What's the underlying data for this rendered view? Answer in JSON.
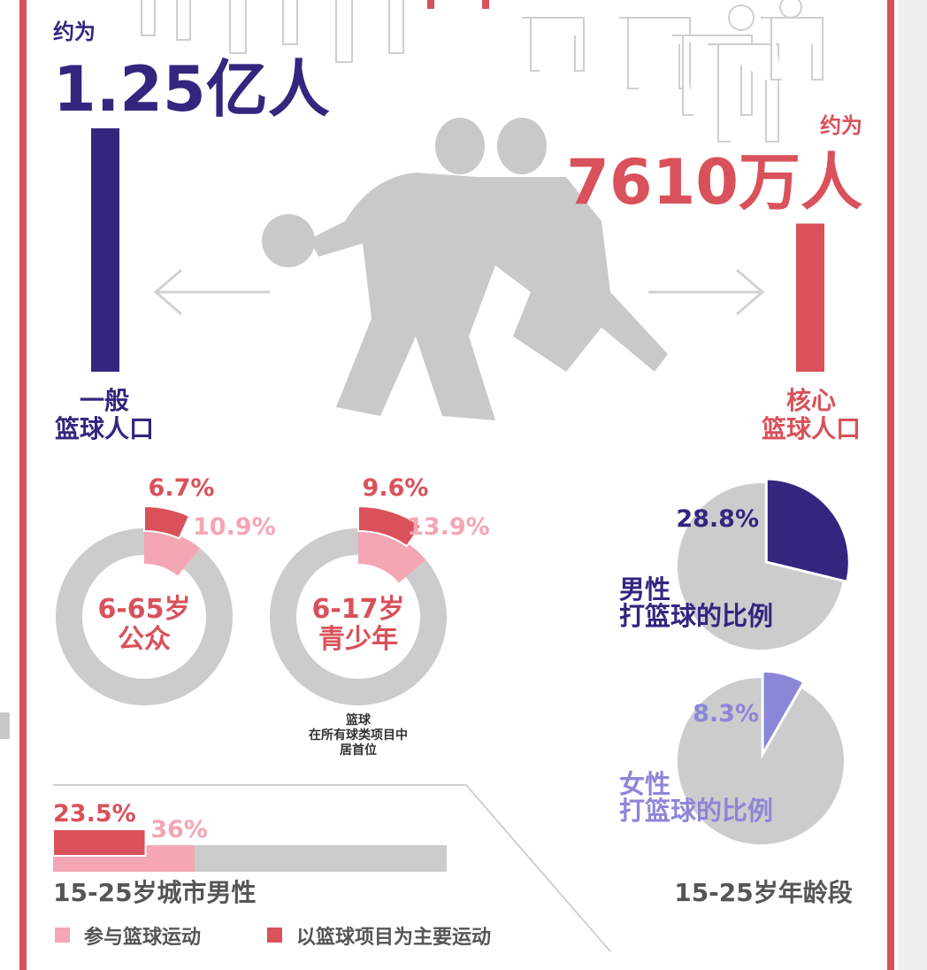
{
  "general": {
    "prefix": "约为",
    "label": "1.25亿人",
    "value": 12500,
    "caption": [
      "一般",
      "篮球人口"
    ]
  },
  "core": {
    "prefix": "约为",
    "label": "7610万人",
    "value": 7610,
    "caption": [
      "核心",
      "篮球人口"
    ]
  },
  "donuts": [
    {
      "title": [
        "6-65岁",
        "公众"
      ],
      "participate": {
        "value": 10.9,
        "label": "10.9%"
      },
      "main": {
        "value": 6.7,
        "label": "6.7%"
      }
    },
    {
      "title": [
        "6-17岁",
        "青少年"
      ],
      "participate": {
        "value": 13.9,
        "label": "13.9%"
      },
      "main": {
        "value": 9.6,
        "label": "9.6%"
      }
    }
  ],
  "donut_note": [
    "篮球",
    "在所有球类项目中",
    "居首位"
  ],
  "pies": [
    {
      "value": 28.8,
      "label": "28.8%",
      "caption": [
        "男性",
        "打篮球的比例"
      ]
    },
    {
      "value": 8.3,
      "label": "8.3%",
      "caption": [
        "女性",
        "打篮球的比例"
      ]
    }
  ],
  "pies_caption": "15-25岁年龄段",
  "bar": {
    "title": "15-25岁城市男性",
    "participate": {
      "value": 36,
      "label": "36%",
      "name": "参与篮球运动"
    },
    "main": {
      "value": 23.5,
      "label": "23.5%",
      "name": "以篮球项目为主要运动"
    }
  }
}
